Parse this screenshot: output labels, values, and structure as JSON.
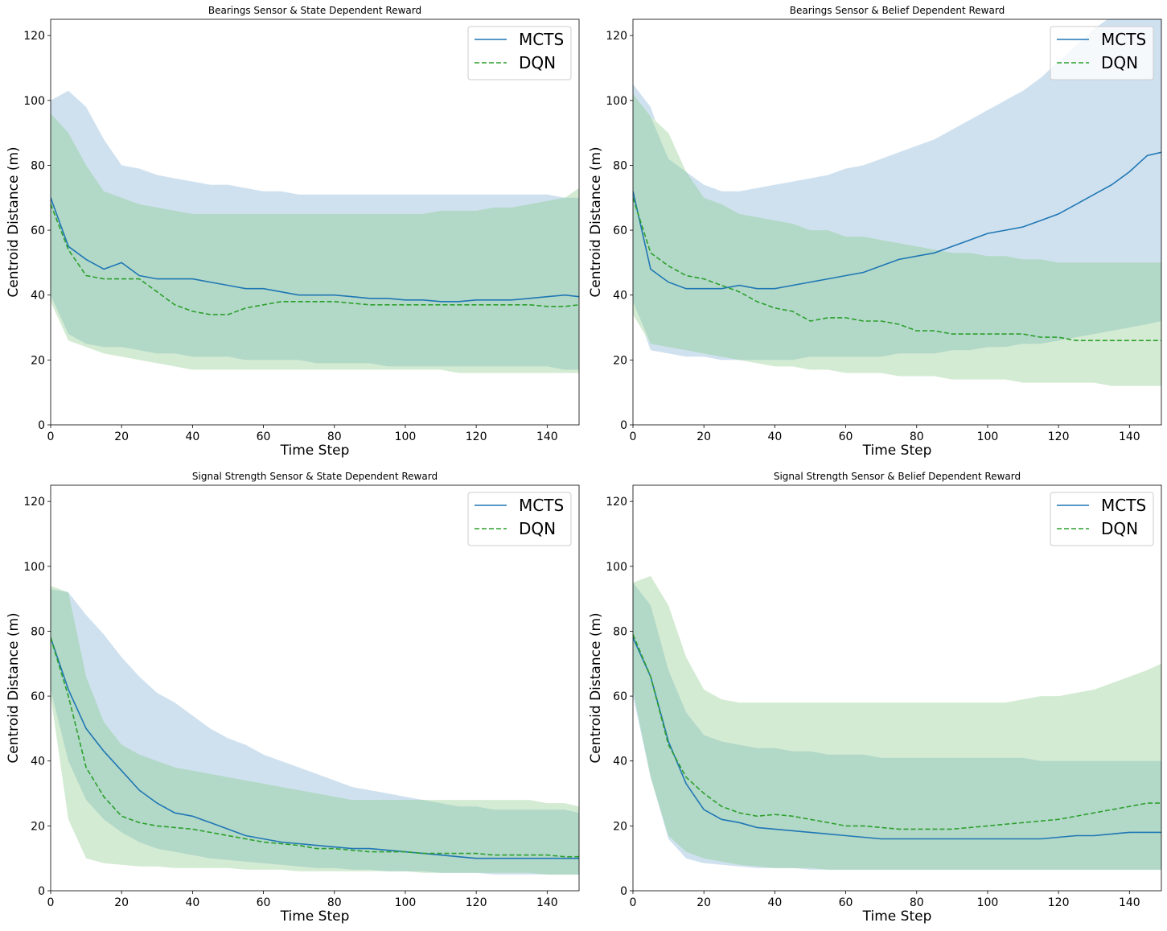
{
  "colors": {
    "mcts_line": "#1f77b4",
    "dqn_line": "#2ca02c",
    "mcts_band": "#cfe1ef",
    "dqn_band": "#d4ebd3",
    "overlap_band": "#b2d8c8"
  },
  "chart_data": [
    {
      "type": "line",
      "title": "Bearings Sensor & State Dependent Reward",
      "xlabel": "Time Step",
      "ylabel": "Centroid Distance (m)",
      "xlim": [
        0,
        149
      ],
      "ylim": [
        0,
        125
      ],
      "xticks": [
        0,
        20,
        40,
        60,
        80,
        100,
        120,
        140
      ],
      "yticks": [
        0,
        20,
        40,
        60,
        80,
        100,
        120
      ],
      "grid": false,
      "legend": "top-right",
      "x": [
        0,
        5,
        10,
        15,
        20,
        25,
        30,
        35,
        40,
        45,
        50,
        55,
        60,
        65,
        70,
        75,
        80,
        85,
        90,
        95,
        100,
        105,
        110,
        115,
        120,
        125,
        130,
        135,
        140,
        145,
        149
      ],
      "series": [
        {
          "name": "MCTS",
          "style": "solid",
          "mean": [
            70,
            55,
            51,
            48,
            50,
            46,
            45,
            45,
            45,
            44,
            43,
            42,
            42,
            41,
            40,
            40,
            40,
            39.5,
            39,
            39,
            38.5,
            38.5,
            38,
            38,
            38.5,
            38.5,
            38.5,
            39,
            39.5,
            40,
            39.5
          ],
          "upper": [
            100,
            103,
            98,
            88,
            80,
            79,
            77,
            76,
            75,
            74,
            74,
            73,
            72,
            72,
            71,
            71,
            71,
            71,
            71,
            71,
            71,
            71,
            71,
            71,
            71,
            71,
            71,
            71,
            71,
            70,
            70
          ],
          "lower": [
            40,
            28,
            25,
            24,
            24,
            23,
            22,
            22,
            21,
            21,
            21,
            20,
            20,
            20,
            20,
            19,
            19,
            19,
            19,
            18,
            18,
            18,
            18,
            18,
            18,
            18,
            18,
            18,
            18,
            17,
            17
          ]
        },
        {
          "name": "DQN",
          "style": "dashed",
          "mean": [
            68,
            54,
            46,
            45,
            45,
            45,
            41,
            37,
            35,
            34,
            34,
            36,
            37,
            38,
            38,
            38,
            38,
            37.5,
            37,
            37,
            37,
            37,
            37,
            37,
            37,
            37,
            37,
            37,
            36.5,
            36.5,
            37
          ],
          "upper": [
            96,
            90,
            80,
            72,
            70,
            68,
            67,
            66,
            65,
            65,
            65,
            65,
            65,
            65,
            65,
            65,
            65,
            65,
            65,
            65,
            65,
            65,
            66,
            66,
            66,
            67,
            67,
            68,
            69,
            70,
            73
          ],
          "lower": [
            38,
            26,
            24,
            22,
            21,
            20,
            19,
            18,
            17,
            17,
            17,
            17,
            17,
            17,
            17,
            17,
            17,
            17,
            17,
            17,
            17,
            17,
            17,
            16,
            16,
            16,
            16,
            16,
            16,
            16,
            16
          ]
        }
      ]
    },
    {
      "type": "line",
      "title": "Bearings Sensor & Belief Dependent Reward",
      "xlabel": "Time Step",
      "ylabel": "Centroid Distance (m)",
      "xlim": [
        0,
        149
      ],
      "ylim": [
        0,
        125
      ],
      "xticks": [
        0,
        20,
        40,
        60,
        80,
        100,
        120,
        140
      ],
      "yticks": [
        0,
        20,
        40,
        60,
        80,
        100,
        120
      ],
      "grid": false,
      "legend": "top-right",
      "x": [
        0,
        5,
        10,
        15,
        20,
        25,
        30,
        35,
        40,
        45,
        50,
        55,
        60,
        65,
        70,
        75,
        80,
        85,
        90,
        95,
        100,
        105,
        110,
        115,
        120,
        125,
        130,
        135,
        140,
        145,
        149
      ],
      "series": [
        {
          "name": "MCTS",
          "style": "solid",
          "mean": [
            72,
            48,
            44,
            42,
            42,
            42,
            43,
            42,
            42,
            43,
            44,
            45,
            46,
            47,
            49,
            51,
            52,
            53,
            55,
            57,
            59,
            60,
            61,
            63,
            65,
            68,
            71,
            74,
            78,
            83,
            84
          ],
          "upper": [
            105,
            98,
            82,
            78,
            74,
            72,
            72,
            73,
            74,
            75,
            76,
            77,
            79,
            80,
            82,
            84,
            86,
            88,
            91,
            94,
            97,
            100,
            103,
            107,
            112,
            117,
            122,
            126,
            130,
            134,
            137
          ],
          "lower": [
            38,
            23,
            22,
            21,
            21,
            20,
            20,
            20,
            20,
            20,
            21,
            21,
            21,
            21,
            21,
            22,
            22,
            22,
            23,
            23,
            24,
            24,
            25,
            25,
            26,
            27,
            28,
            29,
            30,
            31,
            32
          ]
        },
        {
          "name": "DQN",
          "style": "dashed",
          "mean": [
            70,
            53,
            49,
            46,
            45,
            43,
            41,
            38,
            36,
            35,
            32,
            33,
            33,
            32,
            32,
            31,
            29,
            29,
            28,
            28,
            28,
            28,
            28,
            27,
            27,
            26,
            26,
            26,
            26,
            26,
            26
          ],
          "upper": [
            102,
            95,
            90,
            78,
            70,
            68,
            65,
            64,
            63,
            62,
            60,
            60,
            58,
            58,
            57,
            56,
            55,
            54,
            53,
            53,
            52,
            52,
            51,
            51,
            50,
            50,
            50,
            50,
            50,
            50,
            50
          ],
          "lower": [
            34,
            25,
            24,
            23,
            22,
            21,
            20,
            19,
            18,
            18,
            17,
            17,
            16,
            16,
            16,
            15,
            15,
            15,
            14,
            14,
            14,
            14,
            13,
            13,
            13,
            13,
            13,
            12,
            12,
            12,
            12
          ]
        }
      ]
    },
    {
      "type": "line",
      "title": "Signal Strength Sensor & State Dependent Reward",
      "xlabel": "Time Step",
      "ylabel": "Centroid Distance (m)",
      "xlim": [
        0,
        149
      ],
      "ylim": [
        0,
        125
      ],
      "xticks": [
        0,
        20,
        40,
        60,
        80,
        100,
        120,
        140
      ],
      "yticks": [
        0,
        20,
        40,
        60,
        80,
        100,
        120
      ],
      "grid": false,
      "legend": "top-right",
      "x": [
        0,
        5,
        10,
        15,
        20,
        25,
        30,
        35,
        40,
        45,
        50,
        55,
        60,
        65,
        70,
        75,
        80,
        85,
        90,
        95,
        100,
        105,
        110,
        115,
        120,
        125,
        130,
        135,
        140,
        145,
        149
      ],
      "series": [
        {
          "name": "MCTS",
          "style": "solid",
          "mean": [
            78,
            62,
            50,
            43,
            37,
            31,
            27,
            24,
            23,
            21,
            19,
            17,
            16,
            15,
            14.5,
            14,
            13.5,
            13,
            13,
            12.5,
            12,
            11.5,
            11,
            10.5,
            10,
            10,
            10,
            10,
            10,
            10,
            10
          ],
          "upper": [
            93,
            92,
            85,
            79,
            72,
            66,
            61,
            58,
            54,
            50,
            47,
            45,
            42,
            40,
            38,
            36,
            34,
            32,
            31,
            30,
            29,
            28,
            27,
            26,
            26,
            25,
            25,
            25,
            25,
            25,
            24
          ],
          "lower": [
            62,
            40,
            28,
            22,
            18,
            15,
            13,
            12,
            11,
            10,
            9.5,
            9,
            8.5,
            8,
            7.5,
            7,
            7,
            6.5,
            6.5,
            6,
            6,
            6,
            5.5,
            5.5,
            5.5,
            5,
            5,
            5,
            5,
            5,
            5
          ]
        },
        {
          "name": "DQN",
          "style": "dashed",
          "mean": [
            78,
            60,
            38,
            29,
            23,
            21,
            20,
            19.5,
            19,
            18,
            17,
            16,
            15,
            14.5,
            14,
            13,
            13,
            12.5,
            12,
            12,
            12,
            11.5,
            11.5,
            11.5,
            11.5,
            11,
            11,
            11,
            11,
            10.5,
            10.5
          ],
          "upper": [
            94,
            92,
            66,
            52,
            45,
            42,
            40,
            38,
            37,
            36,
            35,
            34,
            33,
            32,
            31,
            30,
            29,
            28,
            28,
            28,
            28,
            28,
            28,
            28,
            28,
            28,
            28,
            28,
            27,
            27,
            26
          ],
          "lower": [
            60,
            22,
            10,
            8.5,
            8,
            7.5,
            7.5,
            7,
            7,
            7,
            7,
            6.5,
            6.5,
            6.5,
            6,
            6,
            6,
            6,
            6,
            6,
            6,
            5.5,
            5.5,
            5.5,
            5.5,
            5.5,
            5.5,
            5.5,
            5,
            5,
            5
          ]
        }
      ]
    },
    {
      "type": "line",
      "title": "Signal Strength Sensor & Belief Dependent Reward",
      "xlabel": "Time Step",
      "ylabel": "Centroid Distance (m)",
      "xlim": [
        0,
        149
      ],
      "ylim": [
        0,
        125
      ],
      "xticks": [
        0,
        20,
        40,
        60,
        80,
        100,
        120,
        140
      ],
      "yticks": [
        0,
        20,
        40,
        60,
        80,
        100,
        120
      ],
      "grid": false,
      "legend": "top-right",
      "x": [
        0,
        5,
        10,
        15,
        20,
        25,
        30,
        35,
        40,
        45,
        50,
        55,
        60,
        65,
        70,
        75,
        80,
        85,
        90,
        95,
        100,
        105,
        110,
        115,
        120,
        125,
        130,
        135,
        140,
        145,
        149
      ],
      "series": [
        {
          "name": "MCTS",
          "style": "solid",
          "mean": [
            78,
            66,
            46,
            33,
            25,
            22,
            21,
            19.5,
            19,
            18.5,
            18,
            17.5,
            17,
            16.5,
            16,
            16,
            16,
            16,
            16,
            16,
            16,
            16,
            16,
            16,
            16.5,
            17,
            17,
            17.5,
            18,
            18,
            18
          ],
          "upper": [
            95,
            88,
            68,
            55,
            48,
            46,
            45,
            44,
            44,
            43,
            43,
            42,
            42,
            42,
            41,
            41,
            41,
            41,
            41,
            41,
            41,
            41,
            41,
            40,
            40,
            40,
            40,
            40,
            40,
            40,
            40
          ],
          "lower": [
            60,
            35,
            16,
            10,
            8.5,
            8,
            7.5,
            7,
            7,
            7,
            6.5,
            6.5,
            6.5,
            6.5,
            6.5,
            6.5,
            6.5,
            6.5,
            6.5,
            6.5,
            6.5,
            6.5,
            6.5,
            6.5,
            6.5,
            6.5,
            6.5,
            6.5,
            6.5,
            6.5,
            6.5
          ]
        },
        {
          "name": "DQN",
          "style": "dashed",
          "mean": [
            79,
            66,
            45,
            35,
            30,
            26,
            24,
            23,
            23.5,
            23,
            22,
            21,
            20,
            20,
            19.5,
            19,
            19,
            19,
            19,
            19.5,
            20,
            20.5,
            21,
            21.5,
            22,
            23,
            24,
            25,
            26,
            27,
            27
          ],
          "upper": [
            95,
            97,
            88,
            72,
            62,
            59,
            58,
            58,
            58,
            58,
            58,
            58,
            58,
            58,
            58,
            58,
            58,
            58,
            58,
            58,
            58,
            58,
            59,
            60,
            60,
            61,
            62,
            64,
            66,
            68,
            70
          ],
          "lower": [
            62,
            35,
            17,
            12,
            10,
            9,
            8,
            7.5,
            7,
            7,
            7,
            6.5,
            6.5,
            6.5,
            6.5,
            6.5,
            6.5,
            6.5,
            6.5,
            6.5,
            6.5,
            6.5,
            6.5,
            6.5,
            6.5,
            6.5,
            6.5,
            6.5,
            6.5,
            6.5,
            6.5
          ]
        }
      ]
    }
  ]
}
